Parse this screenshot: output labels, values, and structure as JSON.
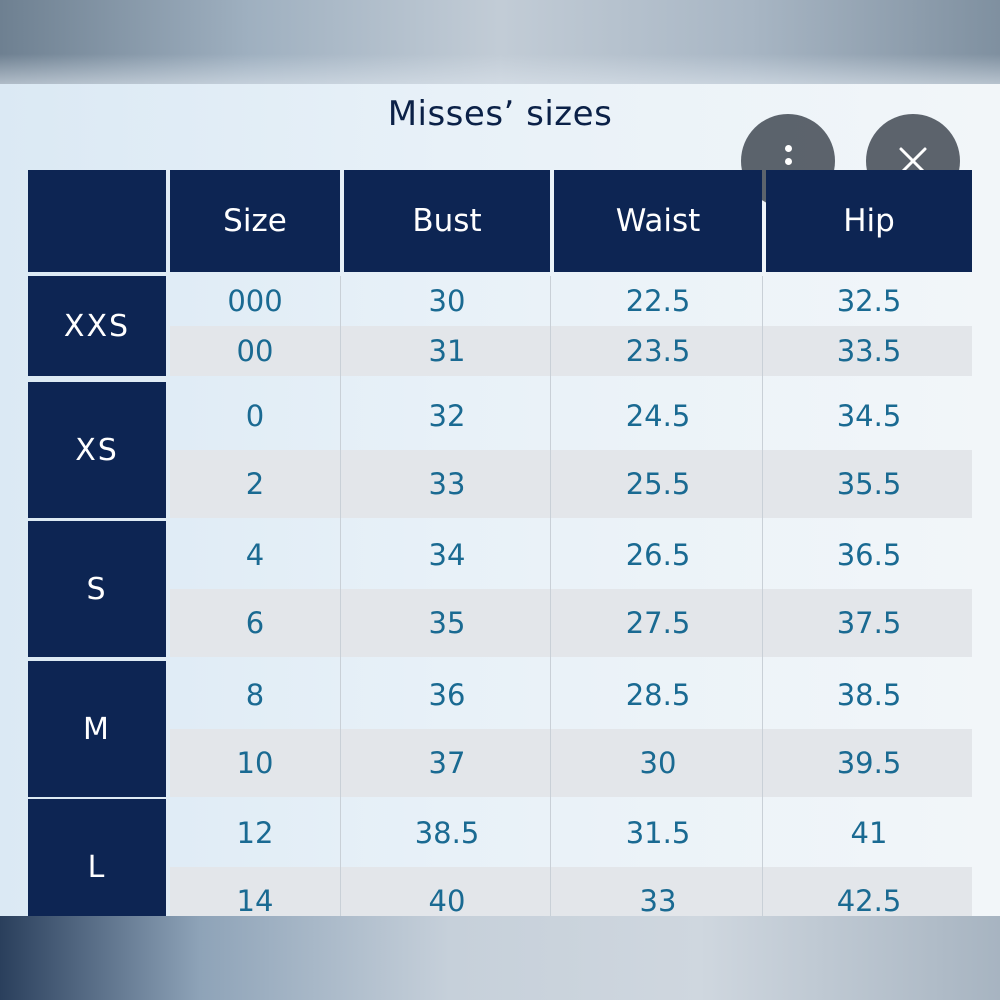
{
  "title": "Misses’ sizes",
  "actions": {
    "more_icon": "more-vertical-icon",
    "close_icon": "close-icon"
  },
  "table": {
    "headers": [
      "",
      "Size",
      "Bust",
      "Waist",
      "Hip"
    ],
    "groups": [
      {
        "label": "XXS",
        "rows": [
          [
            "000",
            "30",
            "22.5",
            "32.5"
          ],
          [
            "00",
            "31",
            "23.5",
            "33.5"
          ]
        ]
      },
      {
        "label": "XS",
        "rows": [
          [
            "0",
            "32",
            "24.5",
            "34.5"
          ],
          [
            "2",
            "33",
            "25.5",
            "35.5"
          ]
        ]
      },
      {
        "label": "S",
        "rows": [
          [
            "4",
            "34",
            "26.5",
            "36.5"
          ],
          [
            "6",
            "35",
            "27.5",
            "37.5"
          ]
        ]
      },
      {
        "label": "M",
        "rows": [
          [
            "8",
            "36",
            "28.5",
            "38.5"
          ],
          [
            "10",
            "37",
            "30",
            "39.5"
          ]
        ]
      },
      {
        "label": "L",
        "rows": [
          [
            "12",
            "38.5",
            "31.5",
            "41"
          ],
          [
            "14",
            "40",
            "33",
            "42.5"
          ]
        ]
      }
    ]
  },
  "colors": {
    "navy": "#0d2553",
    "value_text": "#1a6a92",
    "title_text": "#0b2147"
  }
}
